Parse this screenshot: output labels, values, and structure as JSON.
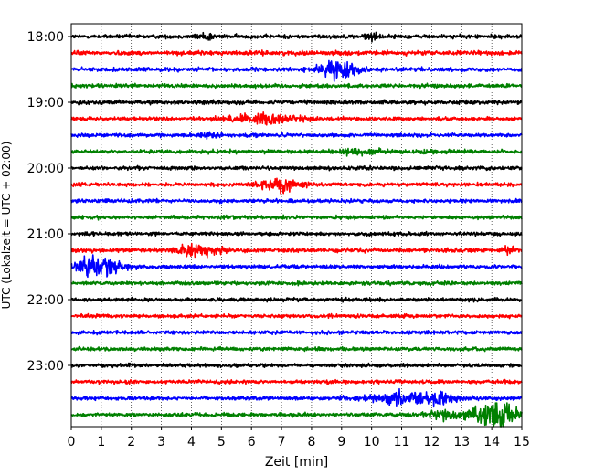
{
  "chart_data": {
    "type": "line",
    "subtype": "helicorder",
    "title": "",
    "xlabel": "Zeit  [min]",
    "ylabel": "UTC (Lokalzeit = UTC + 02:00)",
    "xlim": [
      0,
      15
    ],
    "x_ticks": [
      0,
      1,
      2,
      3,
      4,
      5,
      6,
      7,
      8,
      9,
      10,
      11,
      12,
      13,
      14,
      15
    ],
    "x_tick_labels": [
      "0",
      "1",
      "2",
      "3",
      "4",
      "5",
      "6",
      "7",
      "8",
      "9",
      "10",
      "11",
      "12",
      "13",
      "14",
      "15"
    ],
    "x_grid": "dotted vertical lines at each minute",
    "y_tick_labels": [
      "18:00",
      "19:00",
      "20:00",
      "21:00",
      "22:00",
      "23:00"
    ],
    "minutes_per_trace": 15,
    "trace_colors": [
      "#000000",
      "#ff0000",
      "#0000ff",
      "#008000"
    ],
    "traces": [
      {
        "start": "18:00",
        "color": "#000000",
        "base_amplitude": 0.12,
        "bursts": [
          [
            4.5,
            0.6,
            0.18
          ],
          [
            10.0,
            0.6,
            0.15
          ]
        ]
      },
      {
        "start": "18:15",
        "color": "#ff0000",
        "base_amplitude": 0.13,
        "bursts": []
      },
      {
        "start": "18:30",
        "color": "#0000ff",
        "base_amplitude": 0.12,
        "bursts": [
          [
            8.9,
            1.2,
            0.5
          ]
        ]
      },
      {
        "start": "18:45",
        "color": "#008000",
        "base_amplitude": 0.12,
        "bursts": []
      },
      {
        "start": "19:00",
        "color": "#000000",
        "base_amplitude": 0.12,
        "bursts": []
      },
      {
        "start": "19:15",
        "color": "#ff0000",
        "base_amplitude": 0.11,
        "bursts": [
          [
            6.5,
            2.2,
            0.3
          ]
        ]
      },
      {
        "start": "19:30",
        "color": "#0000ff",
        "base_amplitude": 0.11,
        "bursts": [
          [
            4.6,
            0.5,
            0.15
          ]
        ]
      },
      {
        "start": "19:45",
        "color": "#008000",
        "base_amplitude": 0.11,
        "bursts": [
          [
            9.5,
            1.5,
            0.15
          ],
          [
            12.0,
            1.0,
            0.12
          ]
        ]
      },
      {
        "start": "20:00",
        "color": "#000000",
        "base_amplitude": 0.11,
        "bursts": []
      },
      {
        "start": "20:15",
        "color": "#ff0000",
        "base_amplitude": 0.11,
        "bursts": [
          [
            6.9,
            1.3,
            0.38
          ]
        ]
      },
      {
        "start": "20:30",
        "color": "#0000ff",
        "base_amplitude": 0.11,
        "bursts": []
      },
      {
        "start": "20:45",
        "color": "#008000",
        "base_amplitude": 0.11,
        "bursts": []
      },
      {
        "start": "21:00",
        "color": "#000000",
        "base_amplitude": 0.11,
        "bursts": []
      },
      {
        "start": "21:15",
        "color": "#ff0000",
        "base_amplitude": 0.12,
        "bursts": [
          [
            4.3,
            1.5,
            0.32
          ],
          [
            14.6,
            0.4,
            0.18
          ]
        ]
      },
      {
        "start": "21:30",
        "color": "#0000ff",
        "base_amplitude": 0.11,
        "bursts": [
          [
            0.6,
            1.3,
            0.5
          ],
          [
            1.4,
            0.8,
            0.35
          ]
        ]
      },
      {
        "start": "21:45",
        "color": "#008000",
        "base_amplitude": 0.11,
        "bursts": []
      },
      {
        "start": "22:00",
        "color": "#000000",
        "base_amplitude": 0.11,
        "bursts": []
      },
      {
        "start": "22:15",
        "color": "#ff0000",
        "base_amplitude": 0.11,
        "bursts": []
      },
      {
        "start": "22:30",
        "color": "#0000ff",
        "base_amplitude": 0.11,
        "bursts": []
      },
      {
        "start": "22:45",
        "color": "#008000",
        "base_amplitude": 0.11,
        "bursts": []
      },
      {
        "start": "23:00",
        "color": "#000000",
        "base_amplitude": 0.11,
        "bursts": []
      },
      {
        "start": "23:15",
        "color": "#ff0000",
        "base_amplitude": 0.11,
        "bursts": []
      },
      {
        "start": "23:30",
        "color": "#0000ff",
        "base_amplitude": 0.11,
        "bursts": [
          [
            11.3,
            2.6,
            0.32
          ],
          [
            12.3,
            0.8,
            0.3
          ]
        ]
      },
      {
        "start": "23:45",
        "color": "#008000",
        "base_amplitude": 0.11,
        "bursts": [
          [
            14.1,
            1.4,
            0.95
          ],
          [
            12.4,
            1.2,
            0.25
          ]
        ]
      }
    ]
  }
}
